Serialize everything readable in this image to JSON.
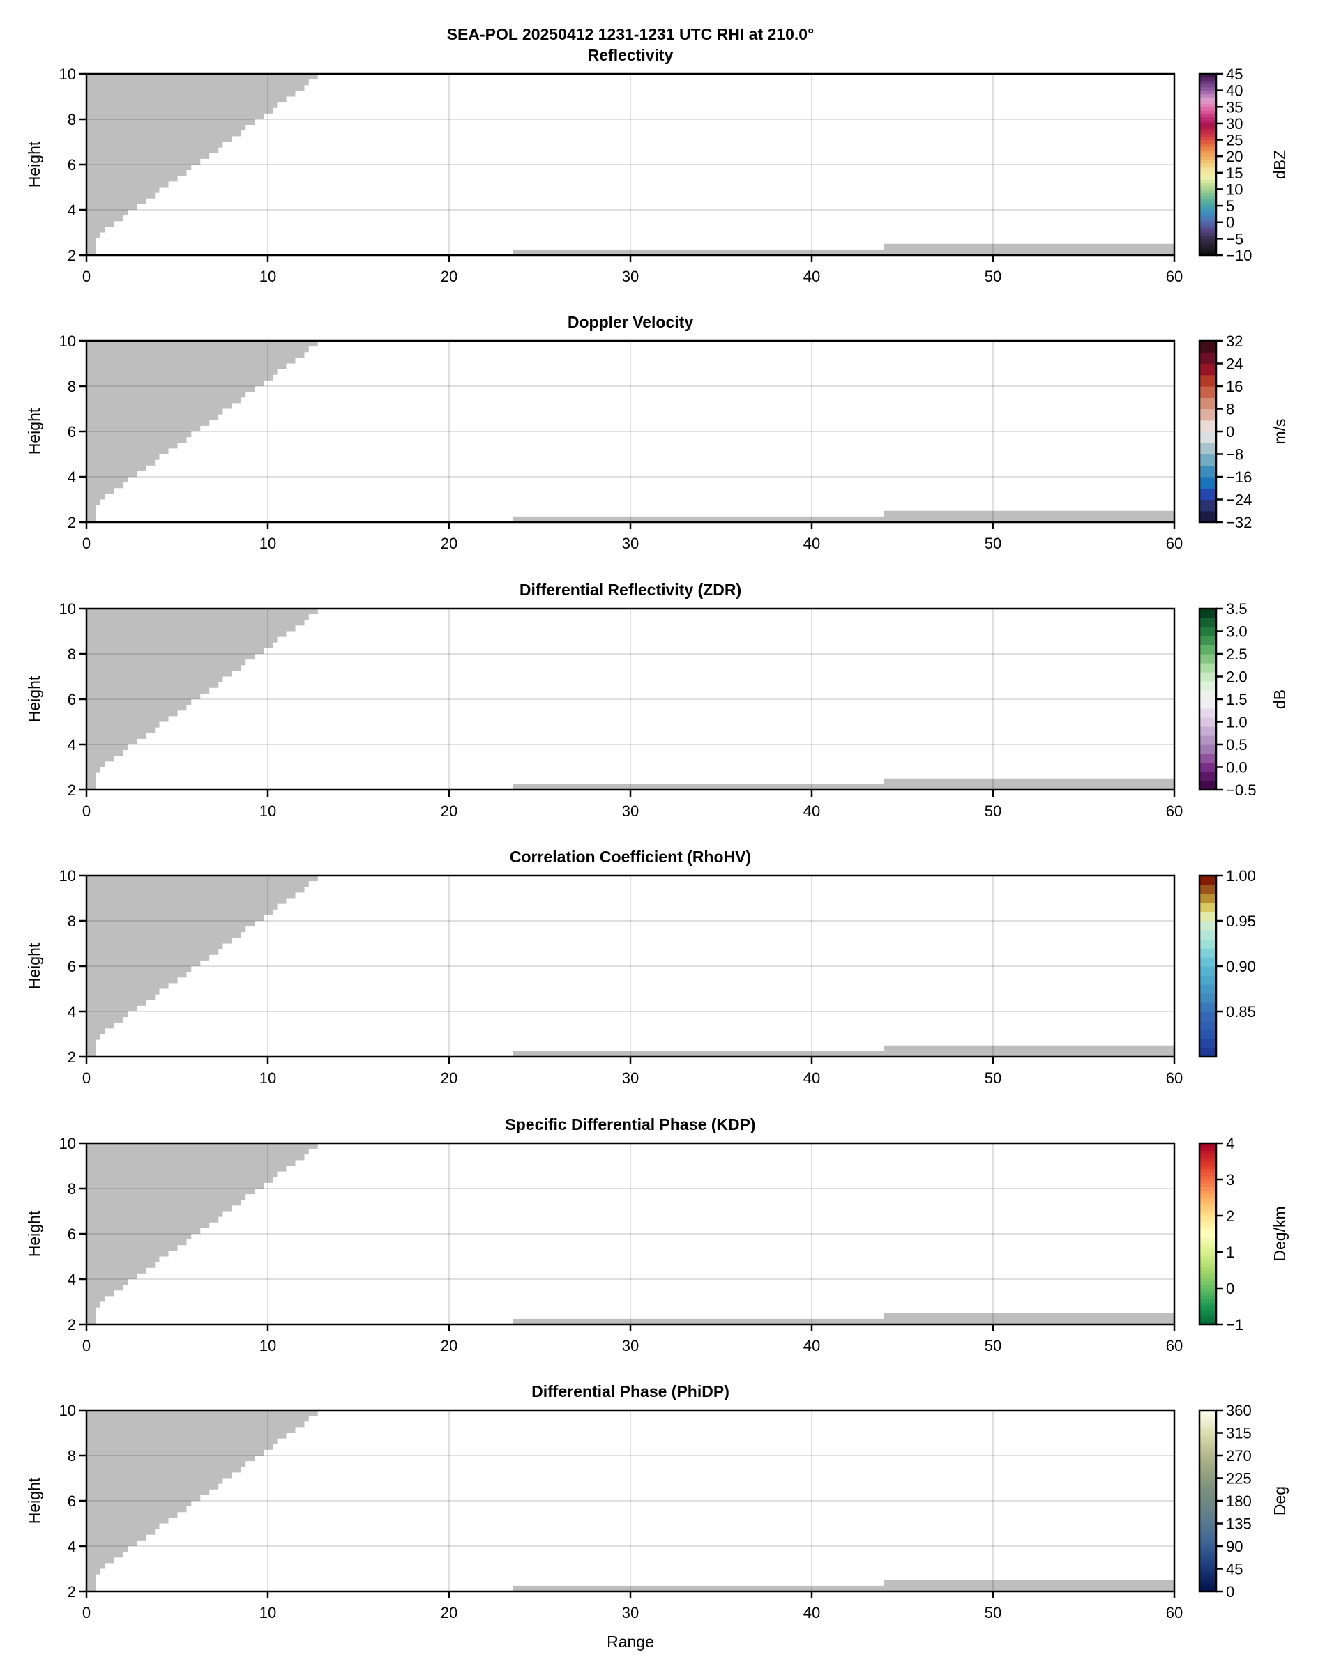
{
  "figure_title": "SEA-POL 20250412 1231-1231 UTC RHI at 210.0°",
  "no_data_color": "#bebebe",
  "no_data": {
    "upper_left_steps": [
      [
        0,
        2.0
      ],
      [
        0.49,
        2.75
      ],
      [
        0.74,
        3.0
      ],
      [
        1.0,
        3.25
      ],
      [
        1.5,
        3.5
      ],
      [
        2.0,
        3.75
      ],
      [
        2.26,
        4.0
      ],
      [
        2.76,
        4.25
      ],
      [
        3.26,
        4.5
      ],
      [
        3.76,
        4.75
      ],
      [
        4.0,
        5.0
      ],
      [
        4.5,
        5.25
      ],
      [
        5.0,
        5.5
      ],
      [
        5.5,
        5.75
      ],
      [
        5.76,
        6.0
      ],
      [
        6.26,
        6.25
      ],
      [
        6.76,
        6.5
      ],
      [
        7.26,
        6.75
      ],
      [
        7.5,
        7.0
      ],
      [
        8.0,
        7.25
      ],
      [
        8.5,
        7.5
      ],
      [
        8.76,
        7.75
      ],
      [
        9.26,
        8.0
      ],
      [
        9.76,
        8.25
      ],
      [
        10.26,
        8.5
      ],
      [
        10.5,
        8.75
      ],
      [
        11.0,
        9.0
      ],
      [
        11.5,
        9.25
      ],
      [
        12.0,
        9.5
      ],
      [
        12.24,
        9.75
      ],
      [
        12.74,
        10.0
      ]
    ],
    "bottom_bands": [
      {
        "range": [
          23.5,
          44.0
        ],
        "height": [
          2.0,
          2.25
        ]
      },
      {
        "range": [
          44.0,
          60.0
        ],
        "height": [
          2.0,
          2.5
        ]
      }
    ]
  },
  "chart_data": [
    {
      "type": "heatmap",
      "title": "Reflectivity",
      "xlabel": "",
      "ylabel": "Height",
      "xlim": [
        0,
        60
      ],
      "ylim": [
        2,
        10
      ],
      "xticks": [
        "0",
        "10",
        "20",
        "30",
        "40",
        "50",
        "60"
      ],
      "yticks": [
        "2",
        "4",
        "6",
        "8",
        "10"
      ],
      "grid": true,
      "colorbar": {
        "label": "dBZ",
        "range": [
          -10,
          45
        ],
        "bins": 55,
        "ticks": [
          -10,
          -5,
          0,
          5,
          10,
          15,
          20,
          25,
          30,
          35,
          40,
          45
        ],
        "tick_labels": [
          "−10",
          "−5",
          "0",
          "5",
          "10",
          "15",
          "20",
          "25",
          "30",
          "35",
          "40",
          "45"
        ],
        "colors": [
          "#0c0c0e",
          "#231f2c",
          "#3a3050",
          "#57468c",
          "#4f6fb2",
          "#3d91bd",
          "#4fa8a0",
          "#7cc195",
          "#b5da8e",
          "#eef3ae",
          "#f4e29a",
          "#efbe6c",
          "#ec9853",
          "#e6623f",
          "#cc3446",
          "#a8114a",
          "#c4307a",
          "#e06aa8",
          "#e2a3cf",
          "#9d65ab",
          "#6c3b82",
          "#3a0f46"
        ]
      }
    },
    {
      "type": "heatmap",
      "title": "Doppler Velocity",
      "xlabel": "",
      "ylabel": "Height",
      "xlim": [
        0,
        60
      ],
      "ylim": [
        2,
        10
      ],
      "xticks": [
        "0",
        "10",
        "20",
        "30",
        "40",
        "50",
        "60"
      ],
      "yticks": [
        "2",
        "4",
        "6",
        "8",
        "10"
      ],
      "grid": true,
      "colorbar": {
        "label": "m/s",
        "range": [
          -32,
          32
        ],
        "bins": 16,
        "ticks": [
          -32,
          -24,
          -16,
          -8,
          0,
          8,
          16,
          24,
          32
        ],
        "tick_labels": [
          "−32",
          "−24",
          "−16",
          "−8",
          "0",
          "8",
          "16",
          "24",
          "32"
        ],
        "colors": [
          "#1c1b45",
          "#2a3272",
          "#2346b0",
          "#1b73bb",
          "#3c8cbd",
          "#72acc2",
          "#a9c3cc",
          "#dcdfe1",
          "#ebdad6",
          "#e0b0a3",
          "#d38c74",
          "#c8634a",
          "#b43a28",
          "#951428",
          "#6d0f26",
          "#420b16"
        ]
      }
    },
    {
      "type": "heatmap",
      "title": "Differential Reflectivity (ZDR)",
      "xlabel": "",
      "ylabel": "Height",
      "xlim": [
        0,
        60
      ],
      "ylim": [
        2,
        10
      ],
      "xticks": [
        "0",
        "10",
        "20",
        "30",
        "40",
        "50",
        "60"
      ],
      "yticks": [
        "2",
        "4",
        "6",
        "8",
        "10"
      ],
      "grid": true,
      "colorbar": {
        "label": "dB",
        "range": [
          -0.5,
          3.5
        ],
        "bins": 20,
        "ticks": [
          -0.5,
          0,
          0.5,
          1,
          1.5,
          2,
          2.5,
          3,
          3.5
        ],
        "tick_labels": [
          "−0.5",
          "0.0",
          "0.5",
          "1.0",
          "1.5",
          "2.0",
          "2.5",
          "3.0",
          "3.5"
        ],
        "colors": [
          "#430b4e",
          "#5c1766",
          "#7a2e88",
          "#8f549d",
          "#a07bb3",
          "#b394c3",
          "#c8aed4",
          "#dac6e2",
          "#e7d9ec",
          "#f1eef3",
          "#ecf2eb",
          "#dff1db",
          "#c9eac3",
          "#abdca3",
          "#85c584",
          "#5eb065",
          "#3d944f",
          "#237b3e",
          "#13622f",
          "#06401e"
        ]
      }
    },
    {
      "type": "heatmap",
      "title": "Correlation Coefficient (RhoHV)",
      "xlabel": "",
      "ylabel": "Height",
      "xlim": [
        0,
        60
      ],
      "ylim": [
        2,
        10
      ],
      "xticks": [
        "0",
        "10",
        "20",
        "30",
        "40",
        "50",
        "60"
      ],
      "yticks": [
        "2",
        "4",
        "6",
        "8",
        "10"
      ],
      "grid": true,
      "colorbar": {
        "label": "",
        "range": [
          0.8,
          1.0
        ],
        "bins": 20,
        "ticks": [
          0.85,
          0.9,
          0.95,
          1.0
        ],
        "tick_labels": [
          "0.85",
          "0.90",
          "0.95",
          "1.00"
        ],
        "colors": [
          "#1f3a96",
          "#2446a2",
          "#2a55ad",
          "#305fb2",
          "#3569b6",
          "#3b78ba",
          "#418ac0",
          "#4698c4",
          "#4da7ca",
          "#57b4d0",
          "#68c1d6",
          "#80d0d9",
          "#9de0d8",
          "#b3e6d6",
          "#cbebcf",
          "#e2eaaa",
          "#d8c962",
          "#b88e30",
          "#9a5318",
          "#821a04"
        ]
      }
    },
    {
      "type": "heatmap",
      "title": "Specific Differential Phase (KDP)",
      "xlabel": "",
      "ylabel": "Height",
      "xlim": [
        0,
        60
      ],
      "ylim": [
        2,
        10
      ],
      "xticks": [
        "0",
        "10",
        "20",
        "30",
        "40",
        "50",
        "60"
      ],
      "yticks": [
        "2",
        "4",
        "6",
        "8",
        "10"
      ],
      "grid": true,
      "colorbar": {
        "label": "Deg/km",
        "range": [
          -1,
          4
        ],
        "bins": 50,
        "ticks": [
          -1,
          0,
          1,
          2,
          3,
          4
        ],
        "tick_labels": [
          "−1",
          "0",
          "1",
          "2",
          "3",
          "4"
        ],
        "colors": [
          "#006837",
          "#1a9850",
          "#66bd63",
          "#a6d96a",
          "#d9ef8b",
          "#ffffbf",
          "#fee08b",
          "#fdae61",
          "#f46d43",
          "#d73027",
          "#a50026"
        ]
      }
    },
    {
      "type": "heatmap",
      "title": "Differential Phase (PhiDP)",
      "xlabel": "Range",
      "ylabel": "Height",
      "xlim": [
        0,
        60
      ],
      "ylim": [
        2,
        10
      ],
      "xticks": [
        "0",
        "10",
        "20",
        "30",
        "40",
        "50",
        "60"
      ],
      "yticks": [
        "2",
        "4",
        "6",
        "8",
        "10"
      ],
      "grid": true,
      "colorbar": {
        "label": "Deg",
        "range": [
          0,
          360
        ],
        "bins": 100,
        "ticks": [
          0,
          45,
          90,
          135,
          180,
          225,
          270,
          315,
          360
        ],
        "tick_labels": [
          "0",
          "45",
          "90",
          "135",
          "180",
          "225",
          "270",
          "315",
          "360"
        ],
        "colors": [
          "#00104a",
          "#1d3c7c",
          "#416896",
          "#62808c",
          "#7d927c",
          "#a6ae84",
          "#d6d9a8",
          "#fffff0"
        ]
      }
    }
  ]
}
